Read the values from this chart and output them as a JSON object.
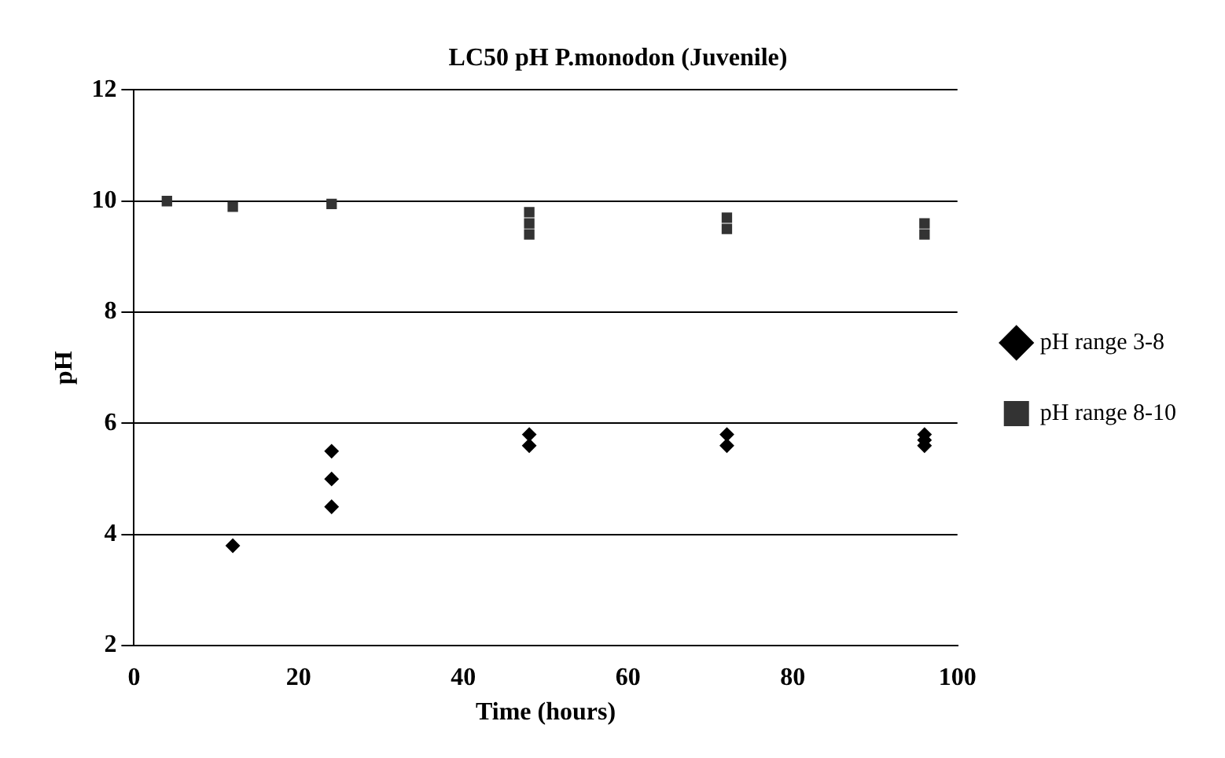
{
  "chart_data": {
    "type": "scatter",
    "title": "LC50 pH P.monodon (Juvenile)",
    "xlabel": "Time (hours)",
    "ylabel": "pH",
    "xlim": [
      0,
      100
    ],
    "xticks": [
      0,
      20,
      40,
      60,
      80,
      100
    ],
    "ylim": [
      2,
      12
    ],
    "yticks": [
      2,
      4,
      6,
      8,
      10,
      12
    ],
    "grid": "y",
    "legend": "right",
    "series": [
      {
        "name": "pH range 3-8",
        "color": "#000000",
        "marker": "diamond",
        "x": [
          12,
          24,
          24,
          24,
          48,
          48,
          72,
          72,
          96,
          96,
          96
        ],
        "values": [
          3.8,
          5.5,
          5.0,
          4.5,
          5.8,
          5.6,
          5.8,
          5.6,
          5.8,
          5.7,
          5.6
        ]
      },
      {
        "name": "pH range 8-10",
        "color": "#333333",
        "marker": "square",
        "x": [
          4,
          12,
          24,
          48,
          48,
          48,
          72,
          72,
          96,
          96
        ],
        "values": [
          10,
          9.9,
          9.95,
          9.8,
          9.6,
          9.4,
          9.7,
          9.5,
          9.6,
          9.4
        ]
      }
    ]
  }
}
